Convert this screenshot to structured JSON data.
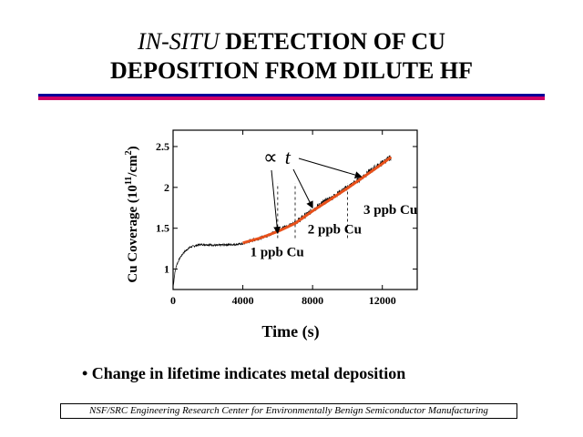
{
  "slide": {
    "title_italic": "IN-SITU",
    "title_rest_line1": " DETECTION OF CU",
    "title_line2": "DEPOSITION FROM DILUTE HF",
    "bullet": "• Change in lifetime indicates metal deposition",
    "footer": "NSF/SRC Engineering Research Center for Environmentally Benign Semiconductor Manufacturing"
  },
  "colors": {
    "rule_blue": "#000099",
    "rule_red": "#cc0066",
    "fit_line": "#e8501a",
    "data": "#000000"
  },
  "chart_data": {
    "type": "line",
    "title": "",
    "xlabel": "Time (s)",
    "ylabel_main": "Cu Coverage (10",
    "ylabel_sup1": "11",
    "ylabel_mid": "/cm",
    "ylabel_sup2": "2",
    "ylabel_end": ")",
    "xlim": [
      0,
      14000
    ],
    "ylim": [
      0.75,
      2.7
    ],
    "xticks": [
      0,
      4000,
      8000,
      12000
    ],
    "xtick_labels": [
      "0",
      "4000",
      "8000",
      "12000"
    ],
    "yticks": [
      1,
      1.5,
      2,
      2.5
    ],
    "ytick_labels": [
      "1",
      "1.5",
      "2",
      "2.5"
    ],
    "series": [
      {
        "role": "measured",
        "x": [
          0,
          100,
          200,
          400,
          600,
          800,
          1000,
          1500,
          2000,
          2500,
          3000,
          3500,
          4000,
          4500,
          5000,
          5500,
          6000,
          6500,
          7000,
          7500,
          8000,
          8500,
          9000,
          9500,
          10000,
          10500,
          11000,
          11500,
          12000,
          12500
        ],
        "y": [
          0.78,
          0.95,
          1.05,
          1.14,
          1.2,
          1.24,
          1.27,
          1.3,
          1.3,
          1.29,
          1.3,
          1.3,
          1.31,
          1.35,
          1.38,
          1.42,
          1.47,
          1.52,
          1.57,
          1.64,
          1.72,
          1.8,
          1.86,
          1.93,
          2.0,
          2.07,
          2.15,
          2.23,
          2.3,
          2.37
        ]
      },
      {
        "role": "fit",
        "x": [
          4000,
          5000,
          6000,
          7000,
          8000,
          9000,
          10000,
          11000,
          12000,
          12500
        ],
        "y": [
          1.32,
          1.38,
          1.46,
          1.56,
          1.71,
          1.85,
          1.99,
          2.14,
          2.29,
          2.37
        ]
      }
    ],
    "annotations": [
      {
        "text": "1 ppb Cu",
        "x": 4000,
        "y": 1.2
      },
      {
        "text": "2 ppb Cu",
        "x": 7300,
        "y": 1.48
      },
      {
        "text": "3 ppb Cu",
        "x": 10500,
        "y": 1.72
      }
    ],
    "proportional_symbol": "∝",
    "proportional_var": "t",
    "arrows_from_label": [
      {
        "to_x": 6000,
        "to_y": 1.44
      },
      {
        "to_x": 8000,
        "to_y": 1.75
      },
      {
        "to_x": 10800,
        "to_y": 2.13
      }
    ],
    "injection_times": [
      6000,
      7000,
      10000
    ],
    "grid": false
  }
}
